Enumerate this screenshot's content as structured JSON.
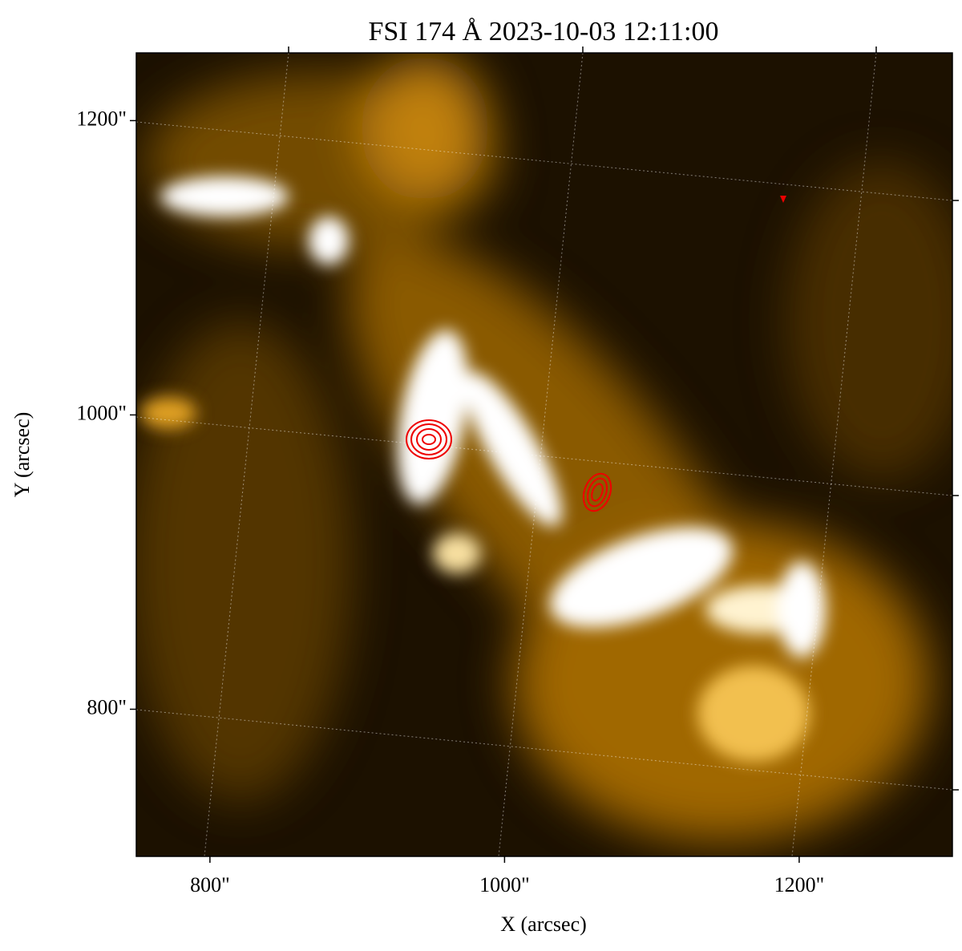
{
  "chart_data": {
    "type": "image",
    "title": "FSI 174 Å 2023-10-03 12:11:00",
    "x_label": "X (arcsec)",
    "y_label": "Y (arcsec)",
    "xlim": [
      750,
      1304
    ],
    "ylim": [
      700,
      1246
    ],
    "xticks": [
      {
        "value": 800,
        "label": "800\""
      },
      {
        "value": 1000,
        "label": "1000\""
      },
      {
        "value": 1200,
        "label": "1200\""
      }
    ],
    "yticks": [
      {
        "value": 800,
        "label": "800\""
      },
      {
        "value": 1000,
        "label": "1000\""
      },
      {
        "value": 1200,
        "label": "1200\""
      }
    ]
  }
}
